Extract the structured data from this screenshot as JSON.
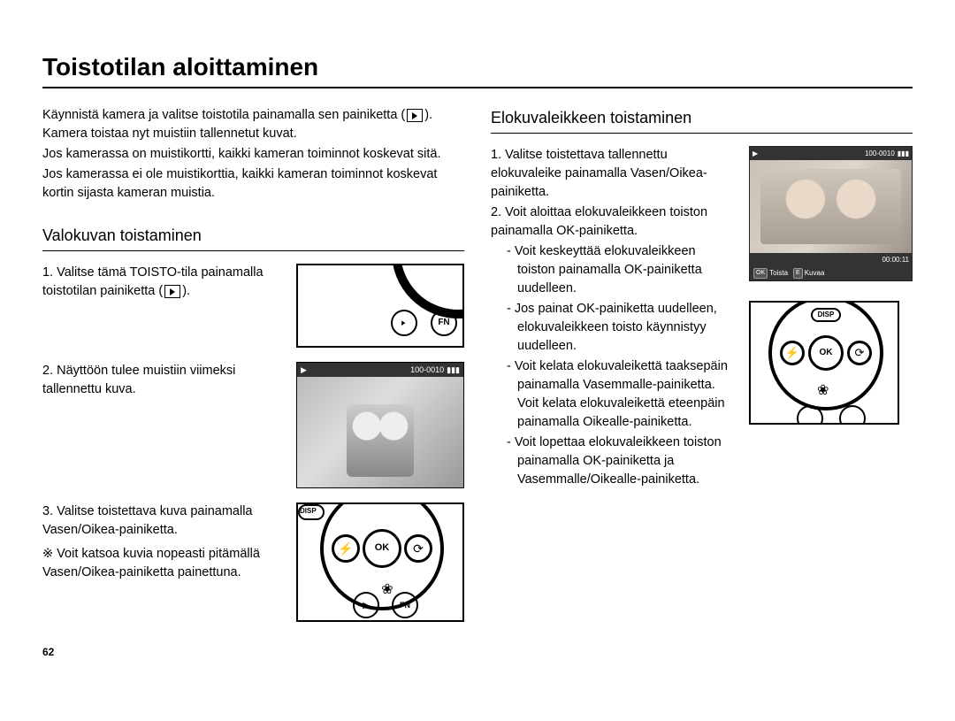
{
  "page_title": "Toistotilan aloittaminen",
  "page_number": "62",
  "intro": {
    "p1": "Käynnistä kamera ja valitse toistotila painamalla sen painiketta (",
    "p1b": "). Kamera toistaa nyt muistiin tallennetut kuvat.",
    "p2": "Jos kamerassa on muistikortti, kaikki kameran toiminnot koskevat sitä.",
    "p3": "Jos kamerassa ei ole muistikorttia, kaikki kameran toiminnot koskevat kortin sijasta kameran muistia."
  },
  "left": {
    "heading": "Valokuvan toistaminen",
    "step1a": "1. Valitse tämä TOISTO-tila painamalla toistotilan painiketta (",
    "step1b": ").",
    "step2": "2. Näyttöön tulee muistiin viimeksi tallennettu kuva.",
    "step3": "3. Valitse toistettava kuva painamalla Vasen/Oikea-painiketta.",
    "note": "※ Voit katsoa kuvia nopeasti pitämällä Vasen/Oikea-painiketta painettuna.",
    "fig_dial": {
      "fn_label": "FN"
    },
    "fig_lcd": {
      "file_counter": "100-0010"
    },
    "fig_pad": {
      "ok": "OK",
      "disp": "DISP",
      "flash": "⚡",
      "timer": "⟳",
      "flower": "❀",
      "fn": "FN"
    }
  },
  "right": {
    "heading": "Elokuvaleikkeen toistaminen",
    "step1": "1. Valitse toistettava tallennettu elokuvaleike painamalla Vasen/Oikea-painiketta.",
    "step2": "2. Voit aloittaa elokuvaleikkeen toiston painamalla OK-painiketta.",
    "s2a": "- Voit keskeyttää elokuvaleikkeen toiston painamalla OK-painiketta uudelleen.",
    "s2b": "- Jos painat OK-painiketta uudelleen, elokuvaleikkeen toisto käynnistyy uudelleen.",
    "s2c": "- Voit kelata elokuvaleikettä taaksepäin painamalla Vasemmalle-painiketta. Voit kelata elokuvaleikettä eteenpäin painamalla Oikealle-painiketta.",
    "s2d": "- Voit lopettaa elokuvaleikkeen toiston painamalla OK-painiketta ja Vasemmalle/Oikealle-painiketta.",
    "fig_lcd2": {
      "file_counter": "100-0010",
      "time": "00:00:11",
      "btn_play_label": "Toista",
      "btn_capture_label": "Kuvaa",
      "ok_key": "OK",
      "e_key": "E"
    },
    "fig_pad2": {
      "ok": "OK",
      "disp": "DISP",
      "flash": "⚡",
      "timer": "⟳"
    }
  },
  "colors": {
    "text": "#000000",
    "rule": "#000000",
    "lcd_bg": "#2b2b2b",
    "lcd_bar": "#333333"
  }
}
